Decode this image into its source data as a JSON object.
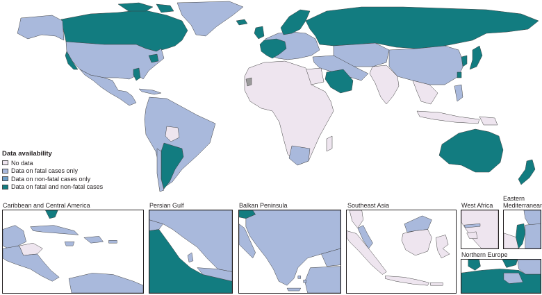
{
  "legend": {
    "title": "Data availability",
    "items": [
      {
        "label": "No data",
        "color": "#eee5ef"
      },
      {
        "label": "Data on fatal cases only",
        "color": "#a9b9dc"
      },
      {
        "label": "Data on non-fatal cases only",
        "color": "#6e9fc9"
      },
      {
        "label": "Data on fatal and non-fatal cases",
        "color": "#127c80"
      }
    ]
  },
  "insets": {
    "caribbean": "Caribbean and Central America",
    "persian_gulf": "Persian Gulf",
    "balkan": "Balkan Peninsula",
    "southeast_asia": "Southeast Asia",
    "west_africa": "West Africa",
    "eastern_med": "Eastern\nMediterranean",
    "northern_europe": "Northern Europe"
  },
  "colors": {
    "no_data": "#eee5ef",
    "fatal_only": "#a9b9dc",
    "non_fatal_only": "#6e9fc9",
    "fatal_and_non_fatal": "#127c80",
    "unclassified": "#9a9a9a",
    "border": "#3f3f3f"
  }
}
